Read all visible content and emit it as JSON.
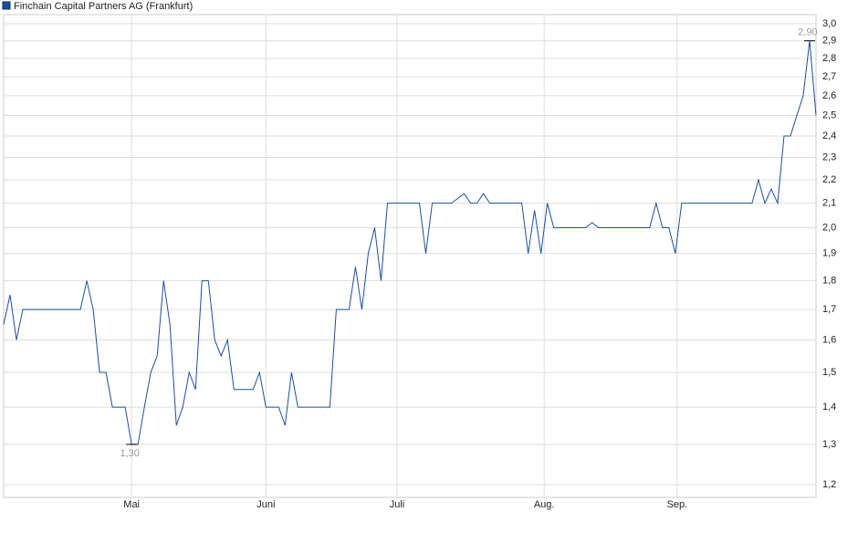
{
  "chart_data": {
    "type": "line",
    "title": "Finchain Capital Partners AG (Frankfurt)",
    "log_scale": true,
    "grid": true,
    "xlim": [
      0,
      127
    ],
    "xticks": [
      {
        "value": 20,
        "label": "Mai"
      },
      {
        "value": 41,
        "label": "Juni"
      },
      {
        "value": 61.5,
        "label": "Juli"
      },
      {
        "value": 84.5,
        "label": "Aug."
      },
      {
        "value": 105.3,
        "label": "Sep."
      }
    ],
    "ylim": [
      1.17,
      3.055
    ],
    "yticks": [
      {
        "value": 1.2,
        "label": "1,2"
      },
      {
        "value": 1.3,
        "label": "1,3"
      },
      {
        "value": 1.4,
        "label": "1,4"
      },
      {
        "value": 1.5,
        "label": "1,5"
      },
      {
        "value": 1.6,
        "label": "1,6"
      },
      {
        "value": 1.7,
        "label": "1,7"
      },
      {
        "value": 1.8,
        "label": "1,8"
      },
      {
        "value": 1.9,
        "label": "1,9"
      },
      {
        "value": 2.0,
        "label": "2,0"
      },
      {
        "value": 2.1,
        "label": "2,1"
      },
      {
        "value": 2.2,
        "label": "2,2"
      },
      {
        "value": 2.3,
        "label": "2,3"
      },
      {
        "value": 2.4,
        "label": "2,4"
      },
      {
        "value": 2.5,
        "label": "2,5"
      },
      {
        "value": 2.6,
        "label": "2,6"
      },
      {
        "value": 2.7,
        "label": "2,7"
      },
      {
        "value": 2.8,
        "label": "2,8"
      },
      {
        "value": 2.9,
        "label": "2,9"
      },
      {
        "value": 3.0,
        "label": "3,0"
      }
    ],
    "series": [
      {
        "name": "Finchain Capital Partners AG (Frankfurt)",
        "color": "#1c4f9c",
        "x": [
          0,
          1,
          2,
          3,
          4,
          5,
          6,
          7,
          8,
          9,
          10,
          11,
          12,
          13,
          14,
          15,
          16,
          17,
          18,
          19,
          20,
          21,
          22,
          23,
          24,
          25,
          26,
          27,
          28,
          29,
          30,
          31,
          32,
          33,
          34,
          35,
          36,
          37,
          38,
          39,
          40,
          41,
          42,
          43,
          44,
          45,
          46,
          47,
          48,
          49,
          50,
          51,
          52,
          53,
          54,
          55,
          56,
          57,
          58,
          59,
          60,
          61,
          62,
          63,
          64,
          65,
          66,
          67,
          68,
          69,
          70,
          71,
          72,
          73,
          74,
          75,
          76,
          77,
          78,
          79,
          80,
          81,
          82,
          83,
          84,
          85,
          86,
          87,
          88,
          89,
          90,
          91,
          92,
          93,
          94,
          95,
          96,
          97,
          98,
          99,
          100,
          101,
          102,
          103,
          104,
          105,
          106,
          107,
          108,
          109,
          110,
          111,
          112,
          113,
          114,
          115,
          116,
          117,
          118,
          119,
          120,
          121,
          122,
          123,
          124,
          125,
          126,
          127
        ],
        "values": [
          1.65,
          1.75,
          1.6,
          1.7,
          1.7,
          1.7,
          1.7,
          1.7,
          1.7,
          1.7,
          1.7,
          1.7,
          1.7,
          1.8,
          1.7,
          1.5,
          1.5,
          1.4,
          1.4,
          1.4,
          1.3,
          1.3,
          1.4,
          1.5,
          1.55,
          1.8,
          1.65,
          1.35,
          1.4,
          1.5,
          1.45,
          1.8,
          1.8,
          1.6,
          1.55,
          1.6,
          1.45,
          1.45,
          1.45,
          1.45,
          1.5,
          1.4,
          1.4,
          1.4,
          1.35,
          1.5,
          1.4,
          1.4,
          1.4,
          1.4,
          1.4,
          1.4,
          1.7,
          1.7,
          1.7,
          1.85,
          1.7,
          1.9,
          2.0,
          1.8,
          2.1,
          2.1,
          2.1,
          2.1,
          2.1,
          2.1,
          1.9,
          2.1,
          2.1,
          2.1,
          2.1,
          2.12,
          2.14,
          2.1,
          2.1,
          2.14,
          2.1,
          2.1,
          2.1,
          2.1,
          2.1,
          2.1,
          1.9,
          2.07,
          1.9,
          2.1,
          2.0,
          2.0,
          2.0,
          2.0,
          2.0,
          2.0,
          2.02,
          2.0,
          2.0,
          2.0,
          2.0,
          2.0,
          2.0,
          2.0,
          2.0,
          2.0,
          2.1,
          2.0,
          2.0,
          1.9,
          2.1,
          2.1,
          2.1,
          2.1,
          2.1,
          2.1,
          2.1,
          2.1,
          2.1,
          2.1,
          2.1,
          2.1,
          2.2,
          2.1,
          2.16,
          2.1,
          2.4,
          2.4,
          2.5,
          2.6,
          2.9,
          2.5
        ]
      }
    ],
    "annotations": [
      {
        "text": "2,90",
        "x": 126,
        "y": 2.9
      },
      {
        "text": "1,30",
        "x": 20,
        "y": 1.3
      }
    ]
  }
}
